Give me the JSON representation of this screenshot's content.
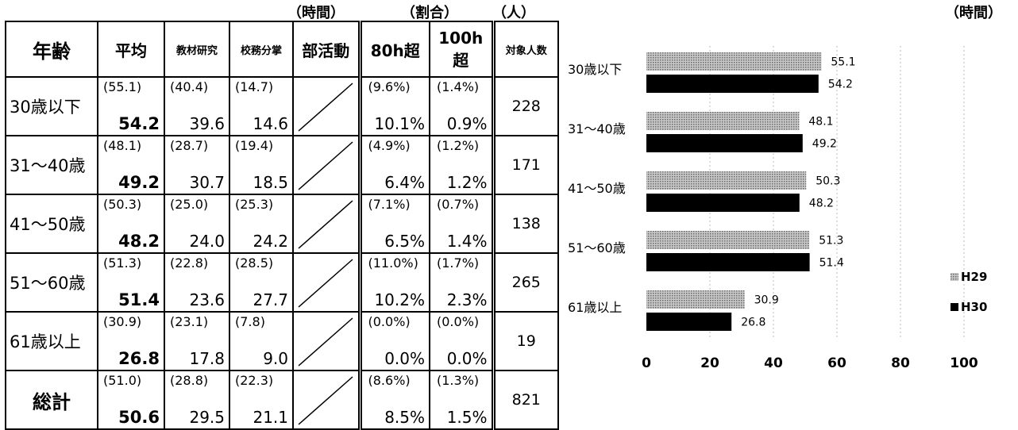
{
  "units": {
    "time": "（時間）",
    "ratio": "（割合）",
    "people": "（人）",
    "chart_time": "（時間）"
  },
  "table": {
    "headers": {
      "age": "年齢",
      "avg": "平均",
      "kyozai": "教材研究",
      "komu": "校務分掌",
      "bukatsu": "部活動",
      "over80": "80h超",
      "over100": "100h超",
      "count": "対象人数"
    },
    "rows": [
      {
        "age": "30歳以下",
        "avg_prev": "(55.1)",
        "avg": "54.2",
        "kyozai_prev": "(40.4)",
        "kyozai": "39.6",
        "komu_prev": "(14.7)",
        "komu": "14.6",
        "o80_prev": "(9.6%)",
        "o80": "10.1%",
        "o100_prev": "(1.4%)",
        "o100": "0.9%",
        "count": "228"
      },
      {
        "age": "31〜40歳",
        "avg_prev": "(48.1)",
        "avg": "49.2",
        "kyozai_prev": "(28.7)",
        "kyozai": "30.7",
        "komu_prev": "(19.4)",
        "komu": "18.5",
        "o80_prev": "(4.9%)",
        "o80": "6.4%",
        "o100_prev": "(1.2%)",
        "o100": "1.2%",
        "count": "171"
      },
      {
        "age": "41〜50歳",
        "avg_prev": "(50.3)",
        "avg": "48.2",
        "kyozai_prev": "(25.0)",
        "kyozai": "24.0",
        "komu_prev": "(25.3)",
        "komu": "24.2",
        "o80_prev": "(7.1%)",
        "o80": "6.5%",
        "o100_prev": "(0.7%)",
        "o100": "1.4%",
        "count": "138"
      },
      {
        "age": "51〜60歳",
        "avg_prev": "(51.3)",
        "avg": "51.4",
        "kyozai_prev": "(22.8)",
        "kyozai": "23.6",
        "komu_prev": "(28.5)",
        "komu": "27.7",
        "o80_prev": "(11.0%)",
        "o80": "10.2%",
        "o100_prev": "(1.7%)",
        "o100": "2.3%",
        "count": "265"
      },
      {
        "age": "61歳以上",
        "avg_prev": "(30.9)",
        "avg": "26.8",
        "kyozai_prev": "(23.1)",
        "kyozai": "17.8",
        "komu_prev": "(7.8)",
        "komu": "9.0",
        "o80_prev": "(0.0%)",
        "o80": "0.0%",
        "o100_prev": "(0.0%)",
        "o100": "0.0%",
        "count": "19"
      },
      {
        "age": "総計",
        "avg_prev": "(51.0)",
        "avg": "50.6",
        "kyozai_prev": "(28.8)",
        "kyozai": "29.5",
        "komu_prev": "(22.3)",
        "komu": "21.1",
        "o80_prev": "(8.6%)",
        "o80": "8.5%",
        "o100_prev": "(1.3%)",
        "o100": "1.5%",
        "count": "821"
      }
    ]
  },
  "chart_data": {
    "type": "bar",
    "orientation": "horizontal",
    "categories": [
      "30歳以下",
      "31〜40歳",
      "41〜50歳",
      "51〜60歳",
      "61歳以上"
    ],
    "series": [
      {
        "name": "H29",
        "values": [
          55.1,
          48.1,
          50.3,
          51.3,
          30.9
        ],
        "color": "#8a8a8a",
        "pattern": "dotted"
      },
      {
        "name": "H30",
        "values": [
          54.2,
          49.2,
          48.2,
          51.4,
          26.8
        ],
        "color": "#000000"
      }
    ],
    "xlim": [
      0,
      100
    ],
    "x_ticks": [
      "0",
      "20",
      "40",
      "60",
      "80",
      "100"
    ],
    "legend_position": "right",
    "grid": "vertical dotted"
  }
}
